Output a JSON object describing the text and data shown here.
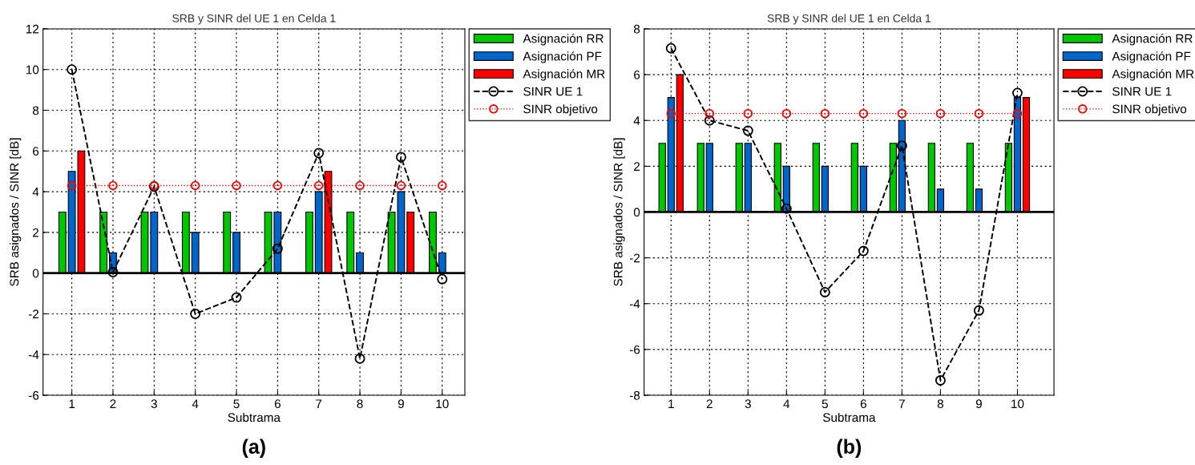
{
  "chart_data": [
    {
      "type": "bar",
      "title": "SRB y SINR del UE 1 en Celda 1",
      "xlabel": "Subtrama",
      "ylabel": "SRB asignados / SINR [dB]",
      "x": [
        1,
        2,
        3,
        4,
        5,
        6,
        7,
        8,
        9,
        10
      ],
      "xlim": [
        0.3,
        10.55
      ],
      "xticks": [
        1,
        2,
        3,
        4,
        5,
        6,
        7,
        8,
        9,
        10
      ],
      "ylim": [
        -6,
        12
      ],
      "yticks": [
        -6,
        -4,
        -2,
        0,
        2,
        4,
        6,
        8,
        10,
        12
      ],
      "grid": true,
      "legend": "top right",
      "ref_lines": [
        {
          "axis": "y",
          "value": 0,
          "color": "#000000",
          "line_style": "solid"
        }
      ],
      "annotations": [
        "(a)"
      ],
      "series": [
        {
          "name": "Asignación RR",
          "type": "bar",
          "color": "#00c800",
          "values": [
            3,
            3,
            3,
            3,
            3,
            3,
            3,
            3,
            3,
            3
          ]
        },
        {
          "name": "Asignación PF",
          "type": "bar",
          "color": "#0066cc",
          "values": [
            5,
            1,
            3,
            2,
            2,
            3,
            4,
            1,
            4,
            1
          ]
        },
        {
          "name": "Asignación MR",
          "type": "bar",
          "color": "#ff0000",
          "values": [
            6,
            null,
            null,
            null,
            null,
            null,
            5,
            null,
            3,
            null
          ]
        },
        {
          "name": "SINR UE 1",
          "type": "line",
          "color": "#000000",
          "marker": "circle",
          "line_style": "dashed",
          "values": [
            10,
            0.05,
            4.25,
            -2,
            -1.2,
            1.2,
            5.9,
            -4.2,
            5.7,
            -0.3
          ]
        },
        {
          "name": "SINR objetivo",
          "type": "line",
          "color": "#ff0000",
          "marker": "circle",
          "line_style": "dotted",
          "values": [
            4.3,
            4.3,
            4.3,
            4.3,
            4.3,
            4.3,
            4.3,
            4.3,
            4.3,
            4.3
          ]
        }
      ]
    },
    {
      "type": "bar",
      "title": "SRB y SINR del UE 1 en Celda 1",
      "xlabel": "Subtrama",
      "ylabel": "SRB asignados / SINR [dB]",
      "x": [
        1,
        2,
        3,
        4,
        5,
        6,
        7,
        8,
        9,
        10
      ],
      "xlim": [
        0.3,
        10.95
      ],
      "xticks": [
        1,
        2,
        3,
        4,
        5,
        6,
        7,
        8,
        9,
        10
      ],
      "ylim": [
        -8,
        8
      ],
      "yticks": [
        -8,
        -6,
        -4,
        -2,
        0,
        2,
        4,
        6,
        8
      ],
      "grid": true,
      "legend": "top right",
      "ref_lines": [
        {
          "axis": "y",
          "value": 0,
          "color": "#000000",
          "line_style": "solid"
        }
      ],
      "annotations": [
        "(b)"
      ],
      "series": [
        {
          "name": "Asignación RR",
          "type": "bar",
          "color": "#00c800",
          "values": [
            3,
            3,
            3,
            3,
            3,
            3,
            3,
            3,
            3,
            3
          ]
        },
        {
          "name": "Asignación PF",
          "type": "bar",
          "color": "#0066cc",
          "values": [
            5,
            3,
            3,
            2,
            2,
            2,
            4,
            1,
            1,
            5
          ]
        },
        {
          "name": "Asignación MR",
          "type": "bar",
          "color": "#ff0000",
          "values": [
            6,
            null,
            null,
            null,
            null,
            null,
            null,
            null,
            null,
            5
          ]
        },
        {
          "name": "SINR UE 1",
          "type": "line",
          "color": "#000000",
          "marker": "circle",
          "line_style": "dashed",
          "values": [
            7.15,
            4.0,
            3.55,
            0.15,
            -3.5,
            -1.7,
            2.9,
            -7.35,
            -4.3,
            5.2
          ]
        },
        {
          "name": "SINR objetivo",
          "type": "line",
          "color": "#ff0000",
          "marker": "circle",
          "line_style": "dotted",
          "values": [
            4.3,
            4.3,
            4.3,
            4.3,
            4.3,
            4.3,
            4.3,
            4.3,
            4.3,
            4.3
          ]
        }
      ]
    }
  ]
}
